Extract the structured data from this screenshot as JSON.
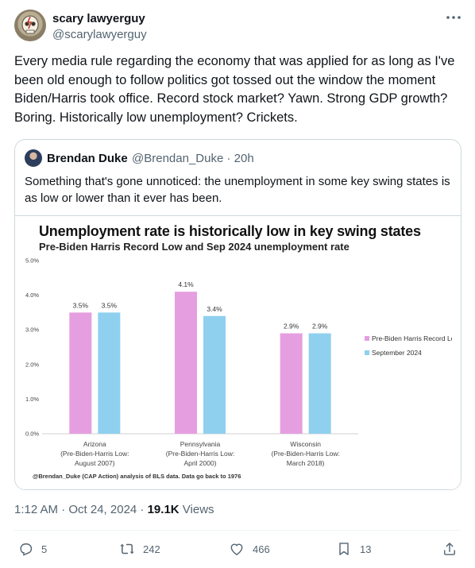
{
  "tweet": {
    "author_name": "scary lawyerguy",
    "author_handle": "@scarylawyerguy",
    "text": "Every media rule regarding the economy that was applied for as long as I've been old enough to follow politics got tossed out the window the moment Biden/Harris took office. Record stock market? Yawn. Strong GDP growth? Boring. Historically low unemployment? Crickets.",
    "time": "1:12 AM · Oct 24, 2024 · ",
    "views_count": "19.1K",
    "views_label": " Views"
  },
  "quote": {
    "author_name": "Brendan Duke",
    "author_handle": "@Brendan_Duke · 20h",
    "text": "Something that's gone unnoticed: the unemployment in some key swing states is as low or lower than it ever has been."
  },
  "chart_image": {
    "source_note": "@Brendan_Duke (CAP Action) analysis of BLS data. Data go back to 1976"
  },
  "chart_data": {
    "type": "bar",
    "title": "Unemployment rate is historically low in key swing states",
    "subtitle": "Pre-Biden Harris Record Low and Sep 2024 unemployment rate",
    "categories": [
      [
        "Arizona",
        "(Pre-Biden-Harris Low:",
        "August 2007)"
      ],
      [
        "Pennsylvania",
        "(Pre-Biden-Harris Low:",
        "April 2000)"
      ],
      [
        "Wisconsin",
        "(Pre-Biden-Harris Low:",
        "March 2018)"
      ]
    ],
    "series": [
      {
        "name": "Pre-Biden Harris Record Low",
        "values": [
          3.5,
          4.1,
          2.9
        ],
        "labels": [
          "3.5%",
          "4.1%",
          "2.9%"
        ],
        "color": "#e59ee0"
      },
      {
        "name": "September 2024",
        "values": [
          3.5,
          3.4,
          2.9
        ],
        "labels": [
          "3.5%",
          "3.4%",
          "2.9%"
        ],
        "color": "#8fd0ef"
      }
    ],
    "yticks": [
      "0.0%",
      "1.0%",
      "2.0%",
      "3.0%",
      "4.0%",
      "5.0%"
    ],
    "ylim": [
      0,
      5
    ],
    "legend": "right",
    "grid": false
  },
  "actions": {
    "replies": "5",
    "reposts": "242",
    "likes": "466",
    "bookmarks": "13"
  },
  "icons": {
    "more": "more-icon",
    "reply": "reply-icon",
    "repost": "repost-icon",
    "like": "heart-icon",
    "bookmark": "bookmark-icon",
    "share": "share-icon"
  },
  "colors": {
    "text_primary": "#0f1419",
    "text_secondary": "#536471",
    "border": "#cfd9de",
    "bar_prebiden": "#e59ee0",
    "bar_sep2024": "#8fd0ef"
  }
}
